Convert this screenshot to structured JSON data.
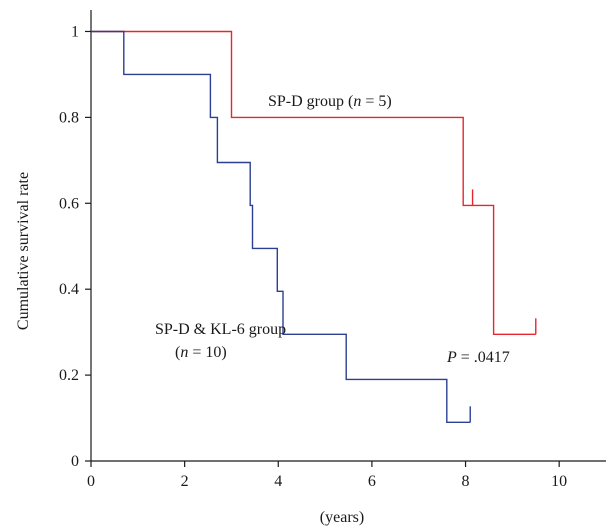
{
  "chart_data": {
    "type": "line",
    "xlabel": "(years)",
    "ylabel": "Cumulative survival rate",
    "xlim": [
      0,
      11
    ],
    "ylim": [
      0,
      1.05
    ],
    "x_ticks": [
      "0",
      "2",
      "4",
      "6",
      "8",
      "10"
    ],
    "y_ticks": [
      "0",
      "0.2",
      "0.4",
      "0.6",
      "0.8",
      "1"
    ],
    "grid": false,
    "colors": {
      "sp_d": "#e8262e",
      "sp_d_kl6": "#2b3f93",
      "axis": "#1a1a1a"
    },
    "series": [
      {
        "steps": [
          [
            0,
            1.0
          ],
          [
            3.0,
            1.0
          ],
          [
            3.0,
            0.8
          ],
          [
            7.95,
            0.8
          ],
          [
            7.95,
            0.595
          ],
          [
            8.6,
            0.595
          ],
          [
            8.6,
            0.295
          ],
          [
            9.5,
            0.295
          ]
        ],
        "censor": [
          [
            8.15,
            0.595
          ],
          [
            9.5,
            0.295
          ]
        ]
      },
      {
        "steps": [
          [
            0,
            1.0
          ],
          [
            0.7,
            1.0
          ],
          [
            0.7,
            0.9
          ],
          [
            2.55,
            0.9
          ],
          [
            2.55,
            0.8
          ],
          [
            2.7,
            0.8
          ],
          [
            2.7,
            0.695
          ],
          [
            3.4,
            0.695
          ],
          [
            3.4,
            0.595
          ],
          [
            3.45,
            0.595
          ],
          [
            3.45,
            0.495
          ],
          [
            3.98,
            0.495
          ],
          [
            3.98,
            0.395
          ],
          [
            4.1,
            0.395
          ],
          [
            4.1,
            0.295
          ],
          [
            5.45,
            0.295
          ],
          [
            5.45,
            0.19
          ],
          [
            7.6,
            0.19
          ],
          [
            7.6,
            0.09
          ],
          [
            8.1,
            0.09
          ]
        ],
        "censor": [
          [
            8.1,
            0.09
          ]
        ]
      }
    ],
    "annotations": {
      "sp_d_group": {
        "label": "SP-D group (",
        "n_var": "n",
        "n_value": " = 5)"
      },
      "sp_d_kl6_group": {
        "line1": "SP-D & KL-6 group",
        "open": "(",
        "n_var": "n",
        "n_value": " = 10)"
      },
      "p_value": {
        "var": "P",
        "value": " = .0417"
      }
    }
  }
}
